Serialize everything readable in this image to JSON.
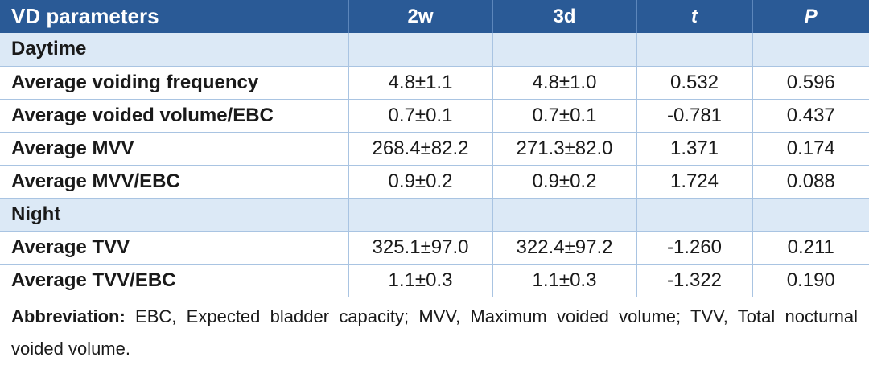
{
  "table": {
    "headers": [
      "VD parameters",
      "2w",
      "3d",
      "t",
      "P"
    ],
    "sections": [
      {
        "title": "Daytime",
        "rows": [
          [
            "Average voiding frequency",
            "4.8±1.1",
            "4.8±1.0",
            "0.532",
            "0.596"
          ],
          [
            "Average voided volume/EBC",
            "0.7±0.1",
            "0.7±0.1",
            "-0.781",
            "0.437"
          ],
          [
            "Average MVV",
            "268.4±82.2",
            "271.3±82.0",
            "1.371",
            "0.174"
          ],
          [
            "Average MVV/EBC",
            "0.9±0.2",
            "0.9±0.2",
            "1.724",
            "0.088"
          ]
        ]
      },
      {
        "title": "Night",
        "rows": [
          [
            "Average TVV",
            "325.1±97.0",
            "322.4±97.2",
            "-1.260",
            "0.211"
          ],
          [
            "Average TVV/EBC",
            "1.1±0.3",
            "1.1±0.3",
            "-1.322",
            "0.190"
          ]
        ]
      }
    ]
  },
  "footnote": {
    "label": "Abbreviation:",
    "text": " EBC, Expected bladder capacity; MVV, Maximum voided volume; TVV, Total nocturnal voided volume."
  },
  "colors": {
    "header_bg": "#2a5a96",
    "section_bg": "#dce9f6",
    "grid_line": "#a9c4e2"
  }
}
